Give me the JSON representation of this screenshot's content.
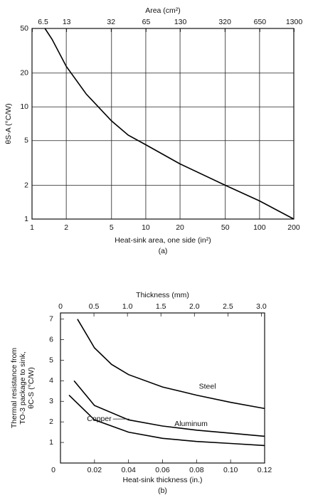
{
  "chart_data": [
    {
      "type": "line",
      "panel_label": "(a)",
      "x_label": "Heat-sink area, one side (in²)",
      "x2_label": "Area (cm²)",
      "y_label": [
        "θS-A (°C/W)"
      ],
      "log": true,
      "grid": true,
      "xlim": [
        1,
        200
      ],
      "xticks": [
        1,
        2,
        5,
        10,
        20,
        50,
        100,
        200
      ],
      "x2lim": [
        6.45,
        1290
      ],
      "x2ticks": [
        6.5,
        13,
        32,
        65,
        130,
        320,
        650,
        1300
      ],
      "ylim": [
        1,
        50
      ],
      "yticks": [
        1,
        2,
        5,
        10,
        20,
        50
      ],
      "series": [
        {
          "color": "#000000",
          "x": [
            1.3,
            1.5,
            2,
            3,
            5,
            7,
            10,
            20,
            50,
            100,
            200
          ],
          "values": [
            50,
            40,
            23,
            13,
            7.5,
            5.6,
            4.6,
            3.1,
            2,
            1.45,
            1
          ]
        }
      ]
    },
    {
      "type": "line",
      "panel_label": "(b)",
      "x_label": "Heat-sink thickness (in.)",
      "x2_label": "Thickness (mm)",
      "y_label": [
        "Thermal resistance from",
        "TO-3 package to sink,",
        "θC-S (°C/W)"
      ],
      "log": false,
      "grid": false,
      "xlim": [
        0,
        0.12
      ],
      "xticks": [
        0,
        0.02,
        0.04,
        0.06,
        0.08,
        {
          "value": 0.1,
          "label": "0.10"
        },
        0.12
      ],
      "x2lim": [
        0,
        3.048
      ],
      "x2ticks": [
        0,
        0.5,
        {
          "value": 1,
          "label": "1.0"
        },
        1.5,
        {
          "value": 2,
          "label": "2.0"
        },
        2.5,
        {
          "value": 3,
          "label": "3.0"
        }
      ],
      "ylim": [
        0,
        7.3
      ],
      "yticks": [
        1,
        2,
        3,
        4,
        5,
        6,
        7
      ],
      "series": [
        {
          "name": "Steel",
          "color": "#000000",
          "x": [
            0.01,
            0.02,
            0.03,
            0.04,
            0.06,
            0.08,
            0.1,
            0.12
          ],
          "values": [
            7,
            5.6,
            4.8,
            4.3,
            3.7,
            3.3,
            2.95,
            2.65
          ]
        },
        {
          "name": "Aluminum",
          "color": "#000000",
          "x": [
            0.008,
            0.02,
            0.04,
            0.06,
            0.08,
            0.1,
            0.12
          ],
          "values": [
            4,
            2.8,
            2.1,
            1.8,
            1.6,
            1.45,
            1.3
          ]
        },
        {
          "name": "Copper",
          "color": "#000000",
          "x": [
            0.005,
            0.02,
            0.04,
            0.06,
            0.08,
            0.1,
            0.12
          ],
          "values": [
            3.3,
            2.1,
            1.5,
            1.2,
            1.05,
            0.95,
            0.85
          ]
        }
      ]
    }
  ]
}
